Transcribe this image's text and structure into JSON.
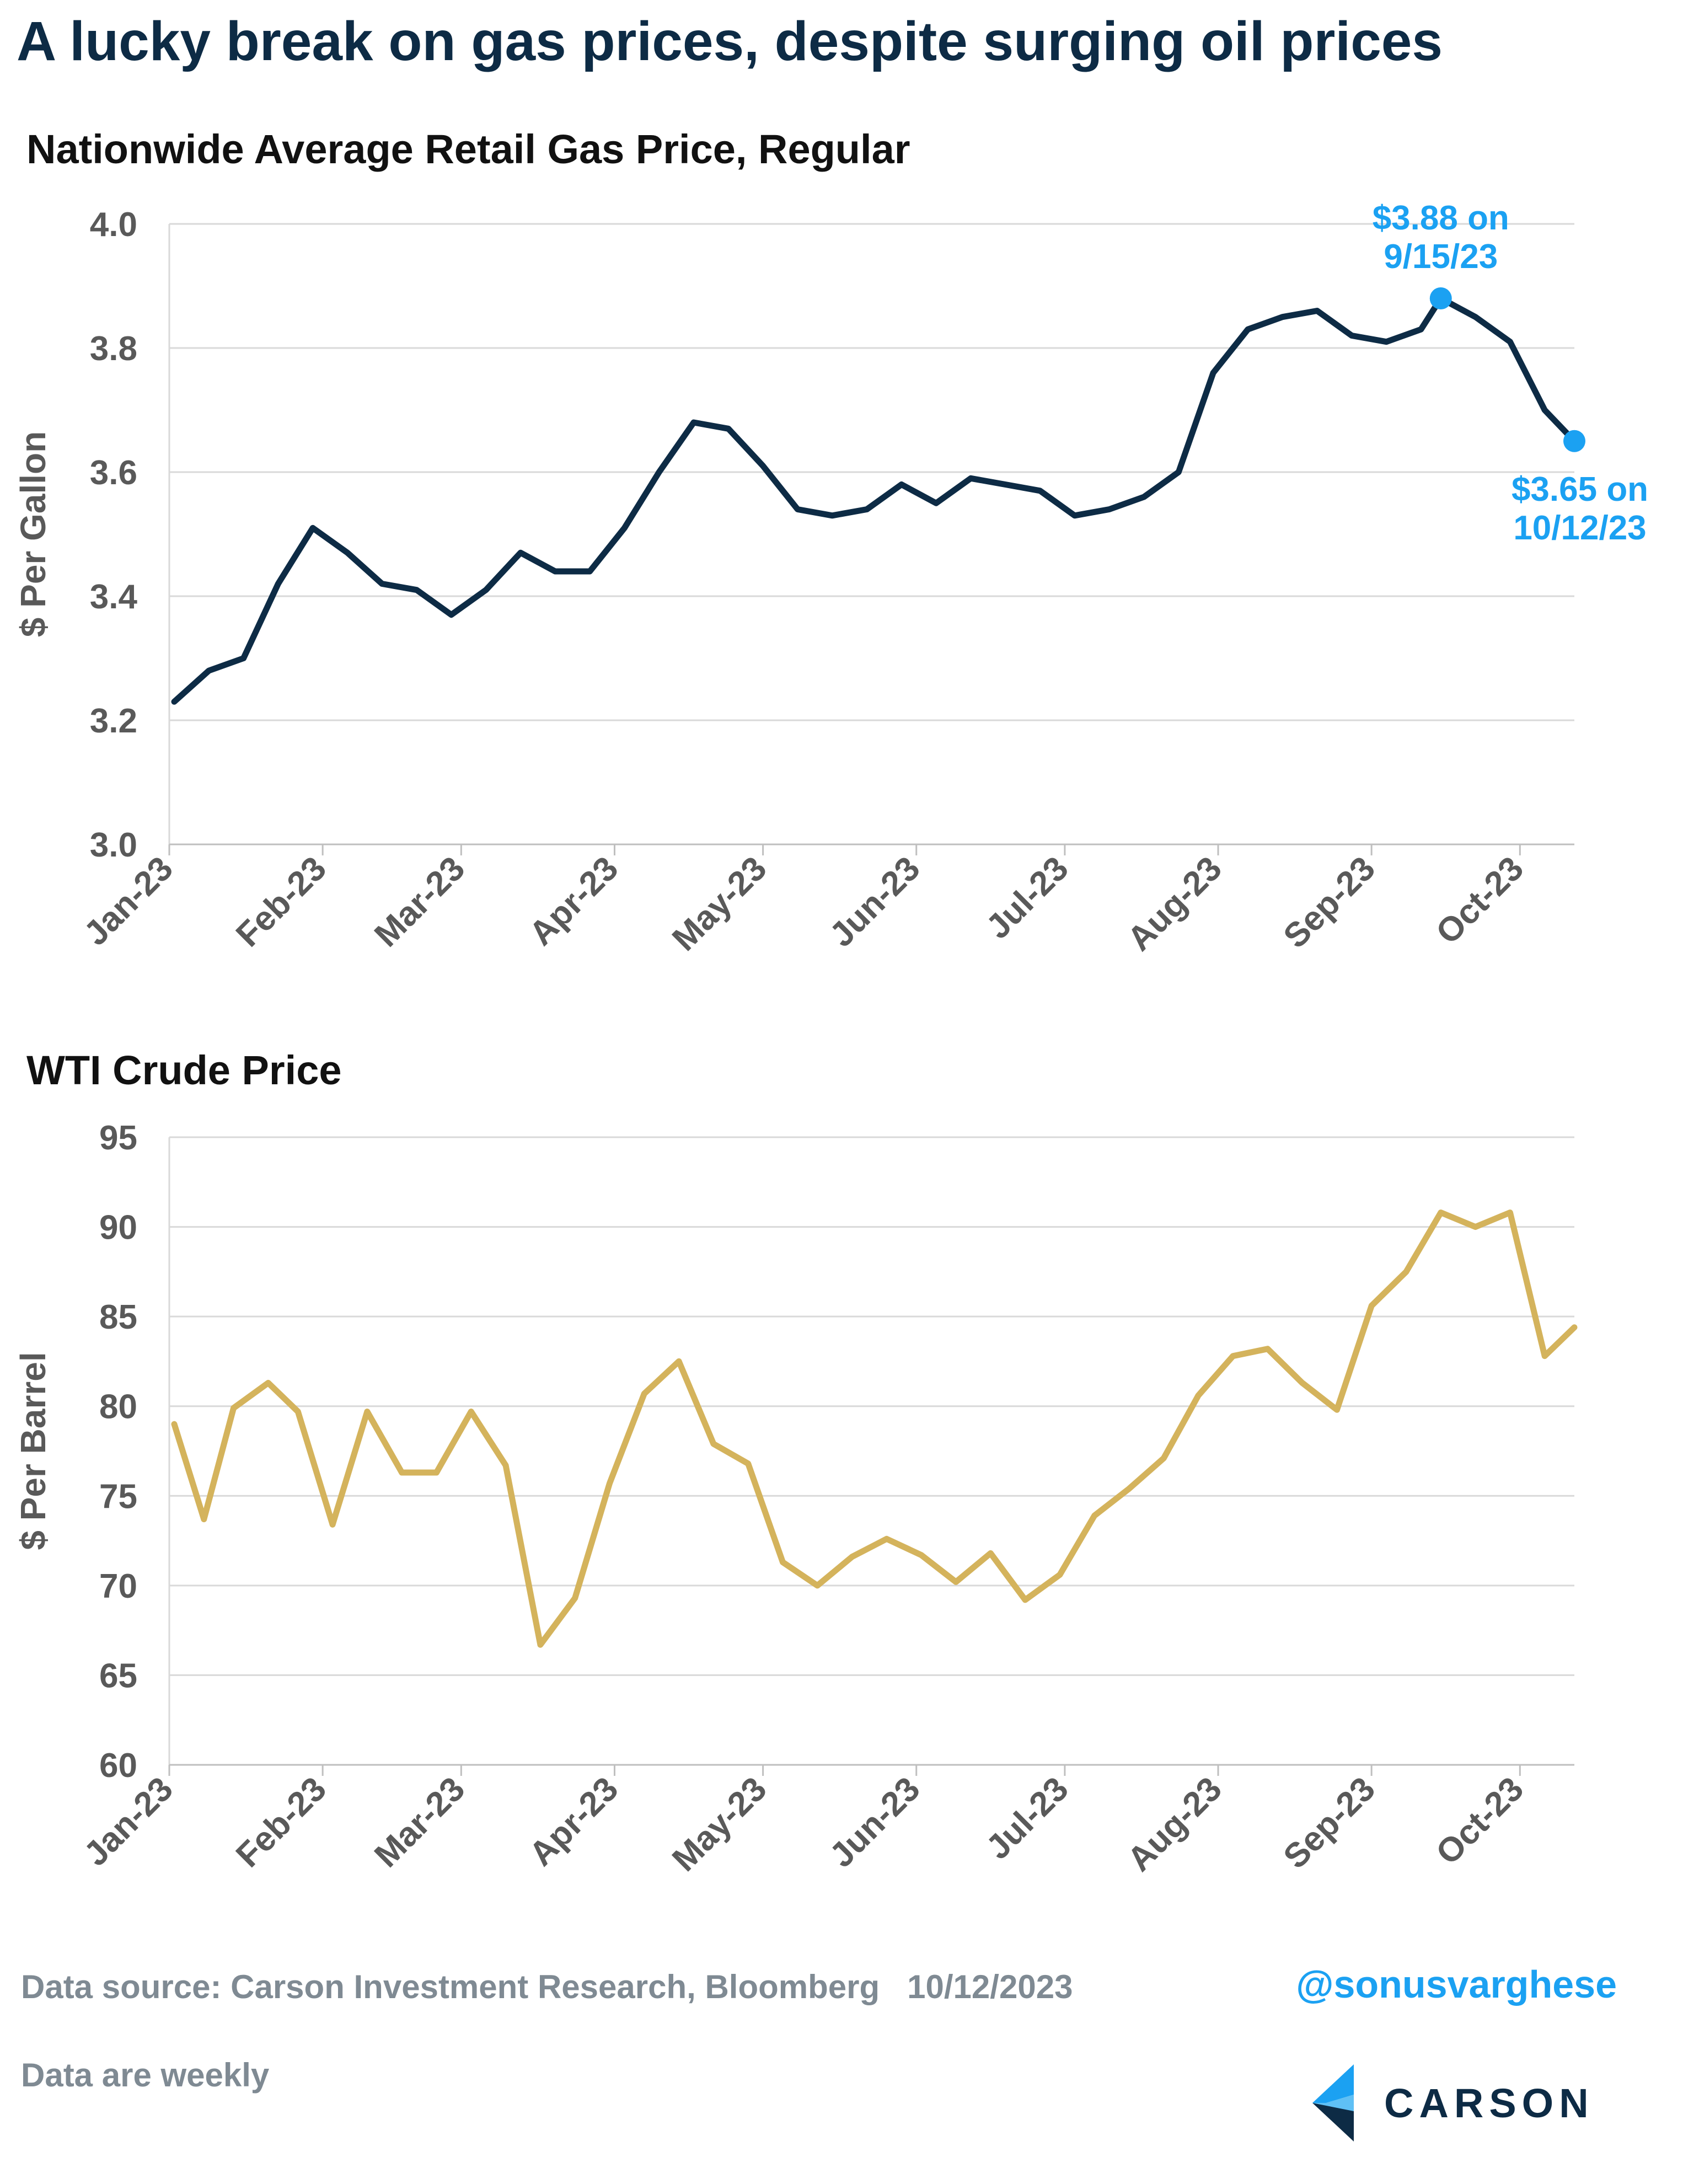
{
  "title": "A lucky break on gas prices, despite surging oil prices",
  "colors": {
    "gas_line": "#0d2b45",
    "wti_line": "#d4b35c",
    "annotation": "#1ba1f2",
    "grid": "#d9d9d9",
    "axis_text": "#595959"
  },
  "footer": {
    "source": "Data source: Carson Investment Research, Bloomberg   10/12/2023",
    "note": "Data are weekly",
    "handle": "@sonusvarghese",
    "logo_text": "CARSON"
  },
  "chart_data": [
    {
      "type": "line",
      "title": "Nationwide Average Retail Gas Price, Regular",
      "ylabel": "$ Per Gallon",
      "xlabel": "",
      "x_tick_labels": [
        "Jan-23",
        "Feb-23",
        "Mar-23",
        "Apr-23",
        "May-23",
        "Jun-23",
        "Jul-23",
        "Aug-23",
        "Sep-23",
        "Oct-23"
      ],
      "y_tick_labels": [
        "3.0",
        "3.2",
        "3.4",
        "3.6",
        "3.8",
        "4.0"
      ],
      "ylim": [
        3.0,
        4.0
      ],
      "grid": true,
      "x": [
        "2023-01-02",
        "2023-01-09",
        "2023-01-16",
        "2023-01-23",
        "2023-01-30",
        "2023-02-06",
        "2023-02-13",
        "2023-02-20",
        "2023-02-27",
        "2023-03-06",
        "2023-03-13",
        "2023-03-20",
        "2023-03-27",
        "2023-04-03",
        "2023-04-10",
        "2023-04-17",
        "2023-04-24",
        "2023-05-01",
        "2023-05-08",
        "2023-05-15",
        "2023-05-22",
        "2023-05-29",
        "2023-06-05",
        "2023-06-12",
        "2023-06-19",
        "2023-06-26",
        "2023-07-03",
        "2023-07-10",
        "2023-07-17",
        "2023-07-24",
        "2023-07-31",
        "2023-08-07",
        "2023-08-14",
        "2023-08-21",
        "2023-08-28",
        "2023-09-04",
        "2023-09-11",
        "2023-09-15",
        "2023-09-22",
        "2023-09-29",
        "2023-10-06",
        "2023-10-12"
      ],
      "series": [
        {
          "values": [
            3.23,
            3.28,
            3.3,
            3.42,
            3.51,
            3.47,
            3.42,
            3.41,
            3.37,
            3.41,
            3.47,
            3.44,
            3.44,
            3.51,
            3.6,
            3.68,
            3.67,
            3.61,
            3.54,
            3.53,
            3.54,
            3.58,
            3.55,
            3.59,
            3.58,
            3.57,
            3.53,
            3.54,
            3.56,
            3.6,
            3.76,
            3.83,
            3.85,
            3.86,
            3.82,
            3.81,
            3.83,
            3.88,
            3.85,
            3.81,
            3.7,
            3.65
          ]
        }
      ],
      "annotations": [
        {
          "label_line1": "$3.88 on",
          "label_line2": "9/15/23",
          "x": "2023-09-15",
          "y": 3.88
        },
        {
          "label_line1": "$3.65 on",
          "label_line2": "10/12/23",
          "x": "2023-10-12",
          "y": 3.65
        }
      ]
    },
    {
      "type": "line",
      "title": "WTI Crude Price",
      "ylabel": "$ Per Barrel",
      "xlabel": "",
      "x_tick_labels": [
        "Jan-23",
        "Feb-23",
        "Mar-23",
        "Apr-23",
        "May-23",
        "Jun-23",
        "Jul-23",
        "Aug-23",
        "Sep-23",
        "Oct-23"
      ],
      "y_tick_labels": [
        "60",
        "65",
        "70",
        "75",
        "80",
        "85",
        "90",
        "95"
      ],
      "ylim": [
        60,
        95
      ],
      "grid": true,
      "x": [
        "2023-01-02",
        "2023-01-08",
        "2023-01-14",
        "2023-01-21",
        "2023-01-27",
        "2023-02-03",
        "2023-02-10",
        "2023-02-17",
        "2023-02-24",
        "2023-03-03",
        "2023-03-10",
        "2023-03-17",
        "2023-03-24",
        "2023-03-31",
        "2023-04-07",
        "2023-04-14",
        "2023-04-21",
        "2023-04-28",
        "2023-05-05",
        "2023-05-12",
        "2023-05-19",
        "2023-05-26",
        "2023-06-02",
        "2023-06-09",
        "2023-06-16",
        "2023-06-23",
        "2023-06-30",
        "2023-07-07",
        "2023-07-14",
        "2023-07-21",
        "2023-07-28",
        "2023-08-04",
        "2023-08-11",
        "2023-08-18",
        "2023-08-25",
        "2023-09-01",
        "2023-09-08",
        "2023-09-15",
        "2023-09-22",
        "2023-09-29",
        "2023-10-06",
        "2023-10-12"
      ],
      "series": [
        {
          "values": [
            79.0,
            73.7,
            79.9,
            81.3,
            79.7,
            73.4,
            79.7,
            76.3,
            76.3,
            79.7,
            76.7,
            66.7,
            69.3,
            75.7,
            80.7,
            82.5,
            77.9,
            76.8,
            71.3,
            70.0,
            71.6,
            72.6,
            71.7,
            70.2,
            71.8,
            69.2,
            70.6,
            73.9,
            75.4,
            77.1,
            80.6,
            82.8,
            83.2,
            81.3,
            79.8,
            85.6,
            87.5,
            90.8,
            90.0,
            90.8,
            82.8,
            84.4
          ]
        }
      ]
    }
  ]
}
